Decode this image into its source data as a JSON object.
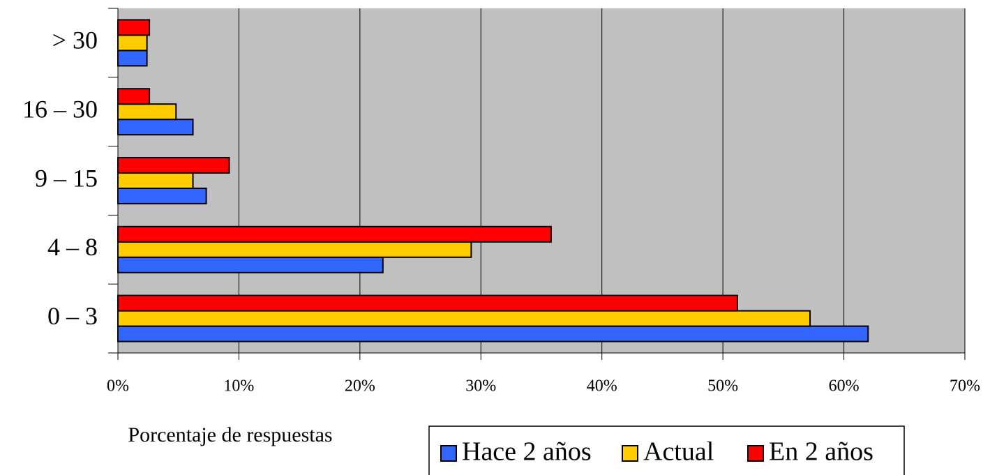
{
  "chart_data": {
    "type": "bar",
    "orientation": "horizontal",
    "x_label": "Porcentaje de respuestas",
    "categories": [
      "0 – 3",
      "4 – 8",
      "9 – 15",
      "16 – 30",
      "> 30"
    ],
    "series": [
      {
        "name": "Hace 2 años",
        "color": "#3366ff",
        "values": [
          62,
          21.9,
          7.3,
          6.2,
          2.4
        ]
      },
      {
        "name": "Actual",
        "color": "#ffcc00",
        "values": [
          57.2,
          29.2,
          6.2,
          4.8,
          2.4
        ]
      },
      {
        "name": "En 2 años",
        "color": "#ff0000",
        "values": [
          51.2,
          35.8,
          9.2,
          2.6,
          2.6
        ]
      }
    ],
    "xlim": [
      0,
      70
    ],
    "xticks": [
      {
        "value": 0,
        "label": "0%"
      },
      {
        "value": 10,
        "label": "10%"
      },
      {
        "value": 20,
        "label": "20%"
      },
      {
        "value": 30,
        "label": "30%"
      },
      {
        "value": 40,
        "label": "40%"
      },
      {
        "value": 50,
        "label": "50%"
      },
      {
        "value": 60,
        "label": "60%"
      },
      {
        "value": 70,
        "label": "70%"
      }
    ],
    "grid": true,
    "plot_background": "#c0c0c0",
    "legend_position": "bottom"
  }
}
